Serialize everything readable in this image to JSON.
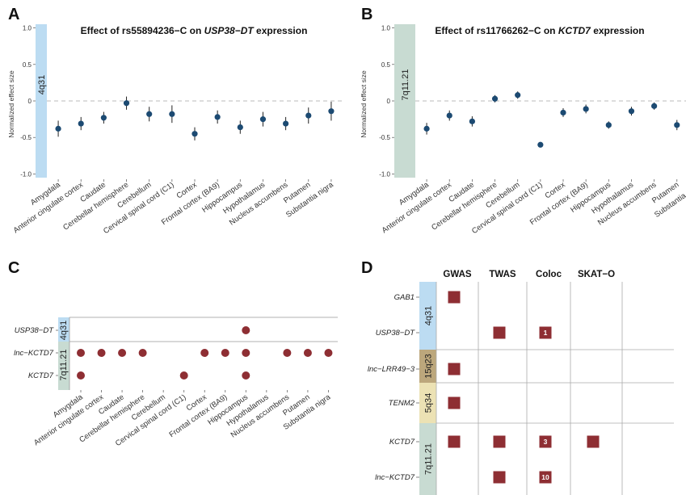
{
  "chart_data": [
    {
      "panel": "A",
      "type": "scatter",
      "title_prefix": "Effect of rs55894236−C on ",
      "title_gene": "USP38−DT",
      "title_suffix": " expression",
      "ylabel": "Normalized effect size",
      "band": "4q31",
      "ylim": [
        -1.05,
        1.05
      ],
      "yticks": [
        "1.0",
        "0.5",
        "0",
        "-0.5",
        "-1.0"
      ],
      "ytick_values": [
        1.0,
        0.5,
        0,
        -0.5,
        -1.0
      ],
      "reference_line": 0,
      "categories": [
        "Amygdala",
        "Anterior cingulate cortex",
        "Caudate",
        "Cerebellar hemisphere",
        "Cerebellum",
        "Cervical spinal cord (C1)",
        "Cortex",
        "Frontal cortex (BA9)",
        "Hippocampus",
        "Hypothalamus",
        "Nucleus accumbens",
        "Putamen",
        "Substantia nigra"
      ],
      "values": [
        -0.38,
        -0.31,
        -0.23,
        -0.03,
        -0.18,
        -0.18,
        -0.45,
        -0.22,
        -0.36,
        -0.25,
        -0.31,
        -0.2,
        -0.14
      ],
      "ci_low": [
        -0.49,
        -0.4,
        -0.31,
        -0.12,
        -0.28,
        -0.3,
        -0.54,
        -0.31,
        -0.45,
        -0.35,
        -0.4,
        -0.31,
        -0.27
      ],
      "ci_high": [
        -0.27,
        -0.22,
        -0.15,
        0.06,
        -0.08,
        -0.06,
        -0.36,
        -0.13,
        -0.27,
        -0.15,
        -0.22,
        -0.09,
        -0.01
      ]
    },
    {
      "panel": "B",
      "type": "scatter",
      "title_prefix": "Effect of rs11766262−C on ",
      "title_gene": "KCTD7",
      "title_suffix": " expression",
      "ylabel": "Normalized effect size",
      "band": "7q11.21",
      "ylim": [
        -1.05,
        1.05
      ],
      "yticks": [
        "1.0",
        "0.5",
        "0",
        "-0.5",
        "-1.0"
      ],
      "ytick_values": [
        1.0,
        0.5,
        0,
        -0.5,
        -1.0
      ],
      "reference_line": 0,
      "categories": [
        "Amygdala",
        "Anterior cingulate cortex",
        "Caudate",
        "Cerebellar hemisphere",
        "Cerebellum",
        "Cervical spinal cord (C1)",
        "Cortex",
        "Frontal cortex (BA9)",
        "Hippocampus",
        "Hypothalamus",
        "Nucleus accumbens",
        "Putamen",
        "Substantia nigra"
      ],
      "values": [
        -0.38,
        -0.2,
        -0.28,
        0.03,
        0.08,
        -0.6,
        -0.16,
        -0.11,
        -0.33,
        -0.14,
        -0.07,
        -0.33,
        -0.31
      ],
      "ci_low": [
        -0.46,
        -0.27,
        -0.35,
        -0.02,
        0.03,
        -0.62,
        -0.22,
        -0.17,
        -0.38,
        -0.2,
        -0.12,
        -0.4,
        -0.38
      ],
      "ci_high": [
        -0.3,
        -0.13,
        -0.21,
        0.08,
        0.13,
        -0.58,
        -0.1,
        -0.05,
        -0.28,
        -0.08,
        -0.02,
        -0.26,
        -0.24
      ]
    },
    {
      "panel": "C",
      "type": "scatter",
      "categories": [
        "Amygdala",
        "Anterior cingulate cortex",
        "Caudate",
        "Cerebellar hemisphere",
        "Cerebellum",
        "Cervical spinal cord (C1)",
        "Cortex",
        "Frontal cortex (BA9)",
        "Hippocampus",
        "Hypothalamus",
        "Nucleus accumbens",
        "Putamen",
        "Substantia nigra"
      ],
      "rows": [
        {
          "gene": "USP38−DT",
          "band": "4q31",
          "present": [
            0,
            0,
            0,
            0,
            0,
            0,
            0,
            0,
            1,
            0,
            0,
            0,
            0
          ]
        },
        {
          "gene": "lnc−KCTD7",
          "band": "7q11.21",
          "present": [
            1,
            1,
            1,
            1,
            0,
            0,
            1,
            1,
            1,
            0,
            1,
            1,
            1
          ]
        },
        {
          "gene": "KCTD7",
          "band": "7q11.21",
          "present": [
            1,
            0,
            0,
            0,
            0,
            1,
            0,
            0,
            1,
            0,
            0,
            0,
            0
          ]
        }
      ]
    },
    {
      "panel": "D",
      "type": "table",
      "columns": [
        "GWAS",
        "TWAS",
        "Coloc",
        "SKAT−O"
      ],
      "groups": [
        {
          "band": "4q31",
          "genes": [
            {
              "name": "GAB1",
              "cells": [
                {
                  "on": true,
                  "count": ""
                },
                {
                  "on": false,
                  "count": ""
                },
                {
                  "on": false,
                  "count": ""
                },
                {
                  "on": false,
                  "count": ""
                }
              ]
            },
            {
              "name": "USP38−DT",
              "cells": [
                {
                  "on": false,
                  "count": ""
                },
                {
                  "on": true,
                  "count": ""
                },
                {
                  "on": true,
                  "count": "1"
                },
                {
                  "on": false,
                  "count": ""
                }
              ]
            }
          ]
        },
        {
          "band": "15q23",
          "genes": [
            {
              "name": "lnc−LRR49−3",
              "cells": [
                {
                  "on": true,
                  "count": ""
                },
                {
                  "on": false,
                  "count": ""
                },
                {
                  "on": false,
                  "count": ""
                },
                {
                  "on": false,
                  "count": ""
                }
              ]
            }
          ]
        },
        {
          "band": "5q34",
          "genes": [
            {
              "name": "TENM2",
              "cells": [
                {
                  "on": true,
                  "count": ""
                },
                {
                  "on": false,
                  "count": ""
                },
                {
                  "on": false,
                  "count": ""
                },
                {
                  "on": false,
                  "count": ""
                }
              ]
            }
          ]
        },
        {
          "band": "7q11.21",
          "genes": [
            {
              "name": "KCTD7",
              "cells": [
                {
                  "on": true,
                  "count": ""
                },
                {
                  "on": true,
                  "count": ""
                },
                {
                  "on": true,
                  "count": "3"
                },
                {
                  "on": true,
                  "count": ""
                }
              ]
            },
            {
              "name": "lnc−KCTD7",
              "cells": [
                {
                  "on": false,
                  "count": ""
                },
                {
                  "on": true,
                  "count": ""
                },
                {
                  "on": true,
                  "count": "10"
                },
                {
                  "on": false,
                  "count": ""
                }
              ]
            }
          ]
        }
      ]
    }
  ],
  "panel_labels": [
    "A",
    "B",
    "C",
    "D"
  ],
  "colors": {
    "point": "#1c4a72",
    "marker": "#8e2e33",
    "band_4q31": "#bcdcf2",
    "band_7q11": "#c8dbd2",
    "band_15q23": "#bca77c",
    "band_5q34": "#ece2b4",
    "zero_line": "#bbbbbb",
    "axis": "#666666"
  }
}
